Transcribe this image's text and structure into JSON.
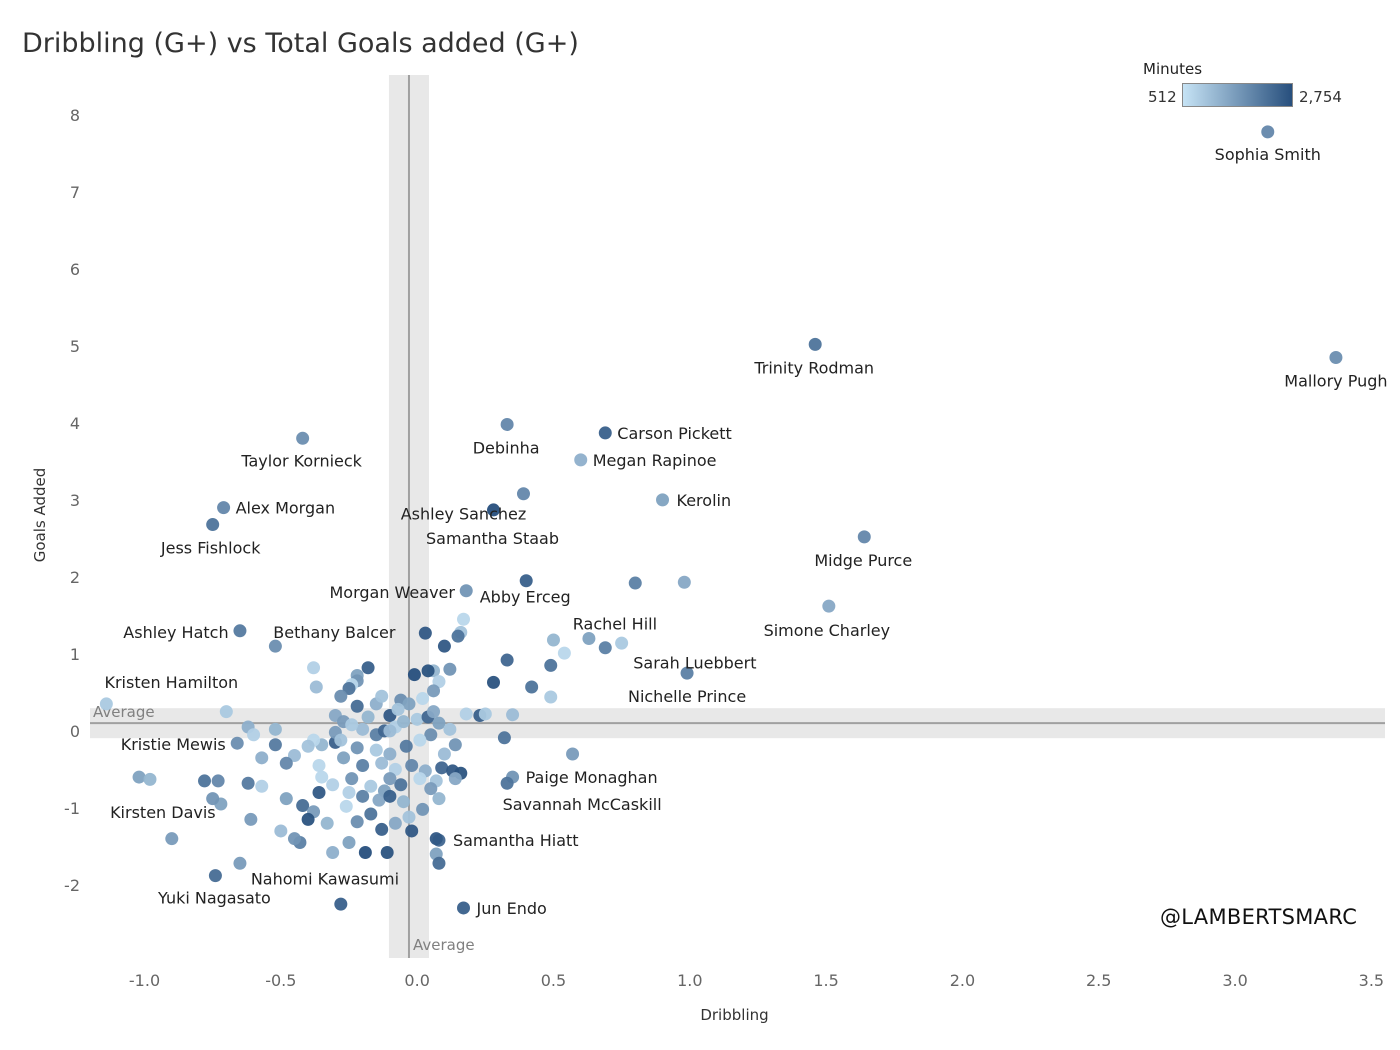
{
  "chart_data": {
    "type": "scatter",
    "title": "Dribbling (G+) vs Total Goals added (G+)",
    "xlabel": "Dribbling",
    "ylabel": "Goals Added",
    "xlim": [
      -1.2,
      3.55
    ],
    "ylim": [
      -2.95,
      8.35
    ],
    "x_ticks": [
      "-1.0",
      "-0.5",
      "0.0",
      "0.5",
      "1.0",
      "1.5",
      "2.0",
      "2.5",
      "3.0",
      "3.5"
    ],
    "y_ticks": [
      "-2",
      "-1",
      "0",
      "1",
      "2",
      "3",
      "4",
      "5",
      "6",
      "7",
      "8"
    ],
    "reference_lines": {
      "x_average": -0.03,
      "y_average": 0.1,
      "x_average_label": "Average",
      "y_average_label": "Average"
    },
    "color_legend": {
      "title": "Minutes",
      "min_label": "512",
      "max_label": "2,754",
      "min_color": "#c6e3f5",
      "max_color": "#274f7d"
    },
    "grid": false,
    "points": [
      {
        "name": "Sophia Smith",
        "x": 3.12,
        "y": 7.78,
        "minutes": 1900
      },
      {
        "name": "Mallory Pugh",
        "x": 3.37,
        "y": 4.85,
        "minutes": 1800
      },
      {
        "name": "Trinity Rodman",
        "x": 1.46,
        "y": 5.02,
        "minutes": 2200
      },
      {
        "name": "Carson Pickett",
        "x": 0.69,
        "y": 3.87,
        "minutes": 2500
      },
      {
        "name": "Debinha",
        "x": 0.33,
        "y": 3.98,
        "minutes": 1900
      },
      {
        "name": "Megan Rapinoe",
        "x": 0.6,
        "y": 3.52,
        "minutes": 1300
      },
      {
        "name": "Taylor Kornieck",
        "x": -0.42,
        "y": 3.8,
        "minutes": 1800
      },
      {
        "name": "Ashley Sanchez",
        "x": 0.39,
        "y": 3.08,
        "minutes": 1900
      },
      {
        "name": "Kerolin",
        "x": 0.9,
        "y": 3.0,
        "minutes": 1500
      },
      {
        "name": "Alex Morgan",
        "x": -0.71,
        "y": 2.9,
        "minutes": 1900
      },
      {
        "name": "Jess Fishlock",
        "x": -0.75,
        "y": 2.68,
        "minutes": 2200
      },
      {
        "name": "Samantha Staab",
        "x": 0.28,
        "y": 2.87,
        "minutes": 2754
      },
      {
        "name": "Midge Purce",
        "x": 1.64,
        "y": 2.52,
        "minutes": 1900
      },
      {
        "name": "Morgan Weaver",
        "x": 0.18,
        "y": 1.82,
        "minutes": 1700
      },
      {
        "name": "Abby Erceg",
        "x": 0.4,
        "y": 1.95,
        "minutes": 2500
      },
      {
        "name": "Simone Charley",
        "x": 1.51,
        "y": 1.62,
        "minutes": 1400
      },
      {
        "name": "Rachel Hill",
        "x": 0.63,
        "y": 1.2,
        "minutes": 1500
      },
      {
        "name": "Sarah Luebbert",
        "x": 0.69,
        "y": 1.08,
        "minutes": 2000
      },
      {
        "name": "Ashley Hatch",
        "x": -0.65,
        "y": 1.3,
        "minutes": 2100
      },
      {
        "name": "Bethany Balcer",
        "x": -0.52,
        "y": 1.1,
        "minutes": 1800
      },
      {
        "name": "Nichelle Prince",
        "x": 0.99,
        "y": 0.75,
        "minutes": 2000
      },
      {
        "name": "Kristen Hamilton",
        "x": -1.14,
        "y": 0.35,
        "minutes": 900
      },
      {
        "name": "Kristie Mewis",
        "x": -0.66,
        "y": -0.16,
        "minutes": 1800
      },
      {
        "name": "Paige Monaghan",
        "x": 0.35,
        "y": -0.6,
        "minutes": 1700
      },
      {
        "name": "Savannah McCaskill",
        "x": 0.33,
        "y": -0.68,
        "minutes": 2200
      },
      {
        "name": "Kirsten Davis",
        "x": -0.72,
        "y": -0.95,
        "minutes": 1500
      },
      {
        "name": "Samantha Hiatt",
        "x": 0.08,
        "y": -1.42,
        "minutes": 2400
      },
      {
        "name": "Nahomi Kawasumi",
        "x": -0.65,
        "y": -1.72,
        "minutes": 1600
      },
      {
        "name": "Yuki Nagasato",
        "x": -0.74,
        "y": -1.88,
        "minutes": 2300
      },
      {
        "name": "Jun Endo",
        "x": 0.17,
        "y": -2.3,
        "minutes": 2500
      },
      {
        "x": 0.8,
        "y": 1.92,
        "minutes": 2000
      },
      {
        "x": 0.98,
        "y": 1.93,
        "minutes": 1400
      },
      {
        "x": 0.54,
        "y": 1.01,
        "minutes": 700
      },
      {
        "x": 0.49,
        "y": 0.85,
        "minutes": 2200
      },
      {
        "x": 0.5,
        "y": 1.18,
        "minutes": 1200
      },
      {
        "x": 0.75,
        "y": 1.14,
        "minutes": 900
      },
      {
        "x": 0.33,
        "y": 0.92,
        "minutes": 2400
      },
      {
        "x": 0.28,
        "y": 0.63,
        "minutes": 2700
      },
      {
        "x": 0.42,
        "y": 0.57,
        "minutes": 2200
      },
      {
        "x": 0.49,
        "y": 0.44,
        "minutes": 900
      },
      {
        "x": 0.35,
        "y": 0.21,
        "minutes": 1100
      },
      {
        "x": 0.57,
        "y": -0.3,
        "minutes": 1600
      },
      {
        "x": 0.32,
        "y": -0.09,
        "minutes": 2200
      },
      {
        "x": 0.23,
        "y": 0.2,
        "minutes": 2500
      },
      {
        "x": 0.18,
        "y": 0.22,
        "minutes": 800
      },
      {
        "x": 0.25,
        "y": 0.22,
        "minutes": 900
      },
      {
        "x": 0.17,
        "y": 1.45,
        "minutes": 700
      },
      {
        "x": 0.16,
        "y": 1.28,
        "minutes": 1000
      },
      {
        "x": 0.15,
        "y": 1.23,
        "minutes": 2200
      },
      {
        "x": 0.1,
        "y": 1.1,
        "minutes": 2600
      },
      {
        "x": 0.06,
        "y": 0.78,
        "minutes": 1200
      },
      {
        "x": 0.04,
        "y": 0.78,
        "minutes": 2700
      },
      {
        "x": 0.12,
        "y": 0.8,
        "minutes": 1700
      },
      {
        "x": 0.08,
        "y": 0.64,
        "minutes": 800
      },
      {
        "x": 0.06,
        "y": 0.52,
        "minutes": 1600
      },
      {
        "x": 0.03,
        "y": 1.27,
        "minutes": 2600
      },
      {
        "x": -0.01,
        "y": 0.73,
        "minutes": 2754
      },
      {
        "x": -0.06,
        "y": 0.4,
        "minutes": 1800
      },
      {
        "x": -0.03,
        "y": 0.35,
        "minutes": 1500
      },
      {
        "x": -0.1,
        "y": 0.2,
        "minutes": 2600
      },
      {
        "x": -0.15,
        "y": 0.35,
        "minutes": 1300
      },
      {
        "x": -0.13,
        "y": 0.45,
        "minutes": 1000
      },
      {
        "x": -0.18,
        "y": 0.82,
        "minutes": 2500
      },
      {
        "x": -0.22,
        "y": 0.72,
        "minutes": 1500
      },
      {
        "x": -0.22,
        "y": 0.65,
        "minutes": 1700
      },
      {
        "x": -0.24,
        "y": 0.6,
        "minutes": 700
      },
      {
        "x": -0.25,
        "y": 0.55,
        "minutes": 2200
      },
      {
        "x": -0.28,
        "y": 0.45,
        "minutes": 1800
      },
      {
        "x": -0.37,
        "y": 0.57,
        "minutes": 1100
      },
      {
        "x": -0.38,
        "y": 0.82,
        "minutes": 800
      },
      {
        "x": -0.22,
        "y": 0.32,
        "minutes": 2300
      },
      {
        "x": -0.3,
        "y": 0.2,
        "minutes": 1400
      },
      {
        "x": -0.27,
        "y": 0.12,
        "minutes": 1600
      },
      {
        "x": -0.2,
        "y": 0.02,
        "minutes": 1100
      },
      {
        "x": -0.15,
        "y": -0.05,
        "minutes": 2000
      },
      {
        "x": -0.12,
        "y": 0.0,
        "minutes": 2400
      },
      {
        "x": -0.08,
        "y": 0.05,
        "minutes": 800
      },
      {
        "x": -0.05,
        "y": 0.12,
        "minutes": 1200
      },
      {
        "x": 0.0,
        "y": 0.15,
        "minutes": 900
      },
      {
        "x": 0.04,
        "y": 0.18,
        "minutes": 2400
      },
      {
        "x": 0.08,
        "y": 0.1,
        "minutes": 1500
      },
      {
        "x": 0.12,
        "y": 0.02,
        "minutes": 1000
      },
      {
        "x": 0.05,
        "y": -0.05,
        "minutes": 1800
      },
      {
        "x": 0.01,
        "y": -0.12,
        "minutes": 700
      },
      {
        "x": -0.04,
        "y": -0.2,
        "minutes": 2100
      },
      {
        "x": -0.1,
        "y": -0.3,
        "minutes": 1300
      },
      {
        "x": -0.15,
        "y": -0.25,
        "minutes": 900
      },
      {
        "x": -0.22,
        "y": -0.22,
        "minutes": 1700
      },
      {
        "x": -0.3,
        "y": -0.15,
        "minutes": 2500
      },
      {
        "x": -0.35,
        "y": -0.18,
        "minutes": 1200
      },
      {
        "x": -0.38,
        "y": -0.12,
        "minutes": 700
      },
      {
        "x": -0.4,
        "y": -0.2,
        "minutes": 1000
      },
      {
        "x": -0.27,
        "y": -0.35,
        "minutes": 1500
      },
      {
        "x": -0.2,
        "y": -0.45,
        "minutes": 2000
      },
      {
        "x": -0.13,
        "y": -0.42,
        "minutes": 1100
      },
      {
        "x": -0.08,
        "y": -0.5,
        "minutes": 800
      },
      {
        "x": -0.02,
        "y": -0.45,
        "minutes": 1900
      },
      {
        "x": 0.03,
        "y": -0.52,
        "minutes": 1300
      },
      {
        "x": 0.09,
        "y": -0.48,
        "minutes": 2400
      },
      {
        "x": 0.13,
        "y": -0.52,
        "minutes": 2600
      },
      {
        "x": 0.16,
        "y": -0.55,
        "minutes": 2700
      },
      {
        "x": 0.14,
        "y": -0.62,
        "minutes": 1400
      },
      {
        "x": 0.07,
        "y": -0.65,
        "minutes": 1000
      },
      {
        "x": 0.05,
        "y": -0.75,
        "minutes": 1600
      },
      {
        "x": 0.08,
        "y": -0.88,
        "minutes": 1200
      },
      {
        "x": 0.01,
        "y": -0.62,
        "minutes": 700
      },
      {
        "x": -0.06,
        "y": -0.7,
        "minutes": 2200
      },
      {
        "x": -0.12,
        "y": -0.78,
        "minutes": 1500
      },
      {
        "x": -0.17,
        "y": -0.72,
        "minutes": 900
      },
      {
        "x": -0.24,
        "y": -0.62,
        "minutes": 1700
      },
      {
        "x": -0.31,
        "y": -0.7,
        "minutes": 800
      },
      {
        "x": -0.36,
        "y": -0.8,
        "minutes": 2600
      },
      {
        "x": -0.36,
        "y": -0.45,
        "minutes": 700
      },
      {
        "x": -0.45,
        "y": -0.32,
        "minutes": 1100
      },
      {
        "x": -0.48,
        "y": -0.42,
        "minutes": 1900
      },
      {
        "x": -0.57,
        "y": -0.35,
        "minutes": 1300
      },
      {
        "x": -0.62,
        "y": -0.68,
        "minutes": 2100
      },
      {
        "x": -0.57,
        "y": -0.72,
        "minutes": 800
      },
      {
        "x": -0.48,
        "y": -0.88,
        "minutes": 1500
      },
      {
        "x": -0.42,
        "y": -0.97,
        "minutes": 2300
      },
      {
        "x": -0.38,
        "y": -1.05,
        "minutes": 1600
      },
      {
        "x": -0.33,
        "y": -1.2,
        "minutes": 1200
      },
      {
        "x": -0.26,
        "y": -0.98,
        "minutes": 700
      },
      {
        "x": -0.22,
        "y": -1.18,
        "minutes": 1800
      },
      {
        "x": -0.17,
        "y": -1.08,
        "minutes": 2200
      },
      {
        "x": -0.13,
        "y": -1.28,
        "minutes": 2500
      },
      {
        "x": -0.08,
        "y": -1.2,
        "minutes": 1400
      },
      {
        "x": -0.03,
        "y": -1.12,
        "minutes": 1000
      },
      {
        "x": 0.02,
        "y": -1.02,
        "minutes": 1700
      },
      {
        "x": -0.02,
        "y": -1.3,
        "minutes": 2600
      },
      {
        "x": -0.11,
        "y": -1.58,
        "minutes": 2700
      },
      {
        "x": -0.19,
        "y": -1.58,
        "minutes": 2754
      },
      {
        "x": -0.25,
        "y": -1.45,
        "minutes": 1500
      },
      {
        "x": -0.31,
        "y": -1.58,
        "minutes": 1300
      },
      {
        "x": -0.43,
        "y": -1.45,
        "minutes": 2000
      },
      {
        "x": -0.45,
        "y": -1.4,
        "minutes": 1700
      },
      {
        "x": -0.5,
        "y": -1.3,
        "minutes": 1100
      },
      {
        "x": -0.61,
        "y": -1.15,
        "minutes": 1600
      },
      {
        "x": 0.07,
        "y": -1.6,
        "minutes": 1500
      },
      {
        "x": 0.08,
        "y": -1.72,
        "minutes": 2300
      },
      {
        "x": 0.07,
        "y": -1.4,
        "minutes": 2600
      },
      {
        "x": -1.02,
        "y": -0.6,
        "minutes": 1500
      },
      {
        "x": -0.98,
        "y": -0.63,
        "minutes": 1200
      },
      {
        "x": -0.78,
        "y": -0.65,
        "minutes": 2200
      },
      {
        "x": -0.73,
        "y": -0.65,
        "minutes": 1900
      },
      {
        "x": -0.75,
        "y": -0.88,
        "minutes": 1700
      },
      {
        "x": -0.9,
        "y": -1.4,
        "minutes": 1600
      },
      {
        "x": -0.62,
        "y": 0.05,
        "minutes": 1300
      },
      {
        "x": -0.7,
        "y": 0.25,
        "minutes": 900
      },
      {
        "x": -0.6,
        "y": -0.05,
        "minutes": 800
      },
      {
        "x": -0.52,
        "y": 0.02,
        "minutes": 1200
      },
      {
        "x": -0.52,
        "y": -0.18,
        "minutes": 2100
      },
      {
        "x": -0.3,
        "y": -0.02,
        "minutes": 1600
      },
      {
        "x": -0.28,
        "y": -0.12,
        "minutes": 1000
      },
      {
        "x": -0.35,
        "y": -0.6,
        "minutes": 700
      },
      {
        "x": -0.4,
        "y": -1.15,
        "minutes": 2700
      },
      {
        "x": -0.28,
        "y": -2.25,
        "minutes": 2500
      },
      {
        "x": -0.1,
        "y": 0.0,
        "minutes": 1100
      },
      {
        "x": -0.07,
        "y": 0.28,
        "minutes": 1000
      },
      {
        "x": 0.02,
        "y": 0.42,
        "minutes": 700
      },
      {
        "x": 0.06,
        "y": 0.25,
        "minutes": 1400
      },
      {
        "x": -0.18,
        "y": 0.18,
        "minutes": 1200
      },
      {
        "x": -0.24,
        "y": 0.08,
        "minutes": 900
      },
      {
        "x": 0.1,
        "y": -0.3,
        "minutes": 1100
      },
      {
        "x": 0.14,
        "y": -0.18,
        "minutes": 1700
      },
      {
        "x": -0.1,
        "y": -0.62,
        "minutes": 1600
      },
      {
        "x": -0.2,
        "y": -0.85,
        "minutes": 2000
      },
      {
        "x": -0.14,
        "y": -0.9,
        "minutes": 1400
      },
      {
        "x": -0.1,
        "y": -0.85,
        "minutes": 2500
      },
      {
        "x": -0.25,
        "y": -0.8,
        "minutes": 800
      },
      {
        "x": -0.05,
        "y": -0.92,
        "minutes": 1200
      }
    ]
  },
  "watermark": "@LAMBERTSMARC"
}
